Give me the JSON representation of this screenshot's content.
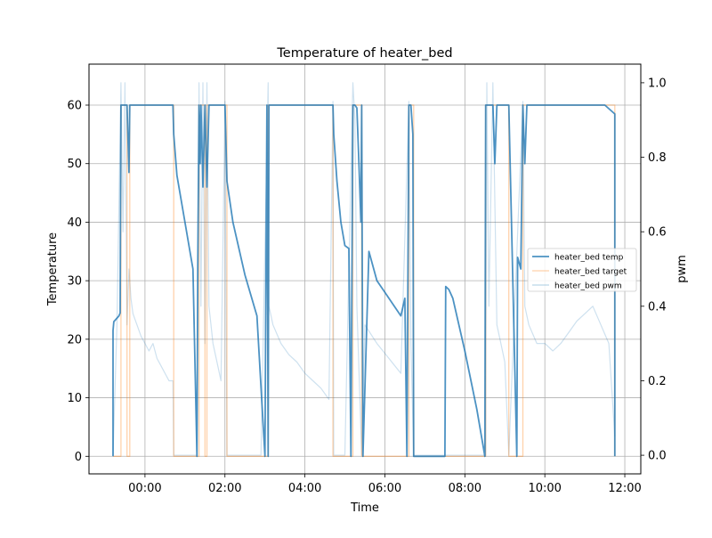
{
  "chart_data": {
    "type": "line",
    "title": "Temperature of heater_bed",
    "xlabel": "Time",
    "ylabel_left": "Temperature",
    "ylabel_right": "pwm",
    "grid": true,
    "legend_position": "center-right",
    "x_unit": "hours relative to 00:00",
    "x_ticks": [
      "00:00",
      "02:00",
      "04:00",
      "06:00",
      "08:00",
      "10:00",
      "12:00"
    ],
    "x_tick_values": [
      0,
      2,
      4,
      6,
      8,
      10,
      12
    ],
    "xlim": [
      -1.4,
      12.4
    ],
    "y_left_ticks": [
      "0",
      "10",
      "20",
      "30",
      "40",
      "50",
      "60"
    ],
    "y_left_tick_values": [
      0,
      10,
      20,
      30,
      40,
      50,
      60
    ],
    "ylim_left": [
      -3,
      67
    ],
    "y_right_ticks": [
      "0.0",
      "0.2",
      "0.4",
      "0.6",
      "0.8",
      "1.0"
    ],
    "y_right_tick_values": [
      0,
      0.2,
      0.4,
      0.6,
      0.8,
      1.0
    ],
    "ylim_right": [
      -0.05,
      1.05
    ],
    "series": [
      {
        "name": "heater_bed temp",
        "color": "#1f77b4",
        "axis": "left",
        "x": [
          -0.8,
          -0.8,
          -0.78,
          -0.65,
          -0.62,
          -0.6,
          -0.5,
          -0.45,
          -0.4,
          -0.38,
          -0.36,
          -0.3,
          0.2,
          0.7,
          0.72,
          0.8,
          1.0,
          1.2,
          1.3,
          1.32,
          1.35,
          1.38,
          1.4,
          1.45,
          1.5,
          1.55,
          1.6,
          1.65,
          1.7,
          1.75,
          1.8,
          1.85,
          1.9,
          1.95,
          2.0,
          2.05,
          2.2,
          2.5,
          2.8,
          3.0,
          3.05,
          3.08,
          3.1,
          3.12,
          3.2,
          3.5,
          3.8,
          4.2,
          4.7,
          4.72,
          4.8,
          4.9,
          5.0,
          5.1,
          5.15,
          5.2,
          5.25,
          5.3,
          5.35,
          5.4,
          5.42,
          5.45,
          5.6,
          5.8,
          6.0,
          6.2,
          6.4,
          6.5,
          6.55,
          6.6,
          6.62,
          6.65,
          6.7,
          6.72,
          6.8,
          7.0,
          7.2,
          7.5,
          7.52,
          7.6,
          7.7,
          8.0,
          8.3,
          8.5,
          8.52,
          8.6,
          8.7,
          8.75,
          8.8,
          8.9,
          9.0,
          9.1,
          9.3,
          9.32,
          9.4,
          9.45,
          9.5,
          9.55,
          9.6,
          9.65,
          9.7,
          9.8,
          10.0,
          10.5,
          11.0,
          11.5,
          11.75,
          11.75
        ],
        "y": [
          0,
          21.5,
          23,
          24,
          24.5,
          60,
          60,
          60,
          48.5,
          60,
          60,
          60,
          60,
          60,
          55,
          48,
          40,
          32,
          0,
          32,
          60,
          50,
          60,
          46,
          60,
          46,
          60,
          60,
          60,
          60,
          60,
          60,
          60,
          60,
          60,
          47,
          40,
          31,
          24,
          0,
          60,
          0,
          60,
          60,
          60,
          60,
          60,
          60,
          60,
          55,
          47,
          40,
          36,
          35.5,
          0,
          60,
          60,
          59.5,
          50,
          40,
          60,
          0,
          35,
          30,
          28,
          26,
          24,
          27,
          0,
          60,
          60,
          60,
          55,
          0,
          0,
          0,
          0,
          0,
          29,
          28.5,
          27,
          18,
          8,
          0,
          60,
          60,
          60,
          50,
          60,
          60,
          60,
          60,
          0,
          34,
          32,
          60,
          50,
          60,
          60,
          60,
          60,
          60,
          60,
          60,
          60,
          60,
          58.5,
          0
        ]
      },
      {
        "name": "heater_bed target",
        "color": "#ff7f0e",
        "axis": "left",
        "x": [
          -0.8,
          -0.6,
          -0.6,
          -0.45,
          -0.45,
          -0.38,
          -0.38,
          0.72,
          0.72,
          1.35,
          1.35,
          1.5,
          1.5,
          1.55,
          1.55,
          2.05,
          2.05,
          3.08,
          3.08,
          4.7,
          4.7,
          5.2,
          5.2,
          5.42,
          5.42,
          6.6,
          6.6,
          6.72,
          6.72,
          8.52,
          8.52,
          9.1,
          9.1,
          9.45,
          9.45,
          11.75,
          11.75
        ],
        "y": [
          0,
          0,
          60,
          60,
          0,
          0,
          60,
          60,
          0,
          0,
          60,
          60,
          0,
          0,
          60,
          60,
          0,
          0,
          60,
          60,
          0,
          0,
          60,
          60,
          0,
          0,
          60,
          60,
          0,
          0,
          60,
          60,
          0,
          0,
          60,
          60,
          0
        ]
      },
      {
        "name": "heater_bed pwm",
        "color": "#1f77b4",
        "axis": "right",
        "x": [
          -0.8,
          -0.7,
          -0.6,
          -0.55,
          -0.5,
          -0.45,
          -0.4,
          -0.35,
          -0.3,
          -0.2,
          -0.1,
          0.0,
          0.1,
          0.2,
          0.3,
          0.4,
          0.5,
          0.6,
          0.7,
          0.72,
          1.0,
          1.3,
          1.35,
          1.4,
          1.45,
          1.5,
          1.55,
          1.6,
          1.7,
          1.8,
          1.9,
          2.0,
          2.05,
          2.3,
          2.6,
          2.9,
          3.08,
          3.1,
          3.2,
          3.4,
          3.6,
          3.8,
          4.0,
          4.2,
          4.4,
          4.6,
          4.7,
          4.72,
          5.0,
          5.2,
          5.25,
          5.3,
          5.42,
          5.5,
          5.8,
          6.1,
          6.4,
          6.6,
          6.65,
          6.72,
          8.52,
          8.55,
          8.6,
          8.7,
          8.8,
          8.9,
          9.0,
          9.1,
          9.45,
          9.5,
          9.6,
          9.8,
          10.0,
          10.2,
          10.4,
          10.6,
          10.8,
          11.0,
          11.2,
          11.4,
          11.6,
          11.75
        ],
        "y": [
          0.0,
          0.35,
          1.0,
          0.6,
          1.0,
          0.35,
          0.5,
          0.42,
          0.38,
          0.35,
          0.32,
          0.3,
          0.28,
          0.3,
          0.26,
          0.24,
          0.22,
          0.2,
          0.2,
          0.0,
          0.0,
          0.0,
          1.0,
          0.4,
          1.0,
          0.3,
          1.0,
          0.4,
          0.3,
          0.25,
          0.2,
          0.95,
          0.0,
          0.0,
          0.0,
          0.0,
          1.0,
          0.4,
          0.35,
          0.3,
          0.27,
          0.25,
          0.22,
          0.2,
          0.18,
          0.15,
          0.95,
          0.0,
          0.0,
          1.0,
          0.9,
          0.4,
          0.0,
          0.35,
          0.3,
          0.26,
          0.22,
          0.95,
          0.3,
          0.0,
          0.0,
          1.0,
          0.4,
          1.0,
          0.35,
          0.3,
          0.25,
          0.0,
          0.95,
          0.4,
          0.35,
          0.3,
          0.3,
          0.28,
          0.3,
          0.33,
          0.36,
          0.38,
          0.4,
          0.35,
          0.3,
          0.05
        ]
      }
    ]
  }
}
